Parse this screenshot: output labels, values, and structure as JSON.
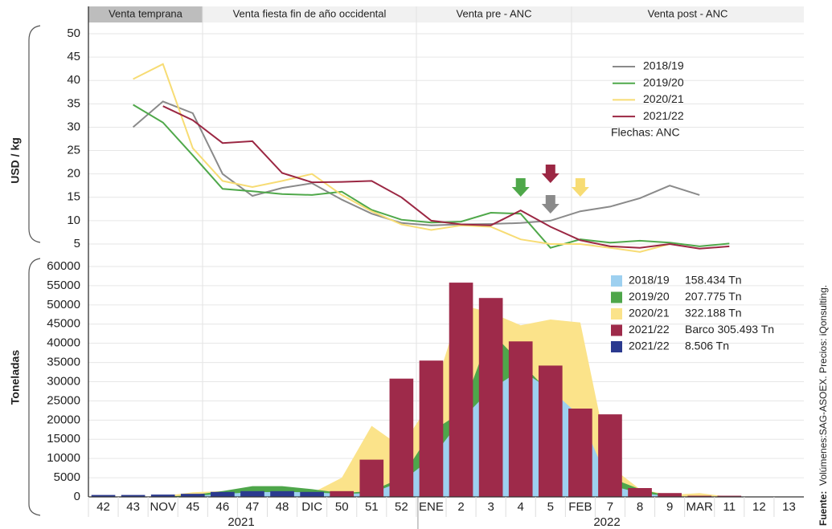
{
  "phases": [
    "Venta temprana",
    "Venta fiesta fin de año occidental",
    "Venta pre - ANC",
    "Venta post - ANC"
  ],
  "years": [
    "2021",
    "2022"
  ],
  "source_label": "Fuente:",
  "source": "Volúmenes:SAG-ASOEX. Precios: iQonsulting.",
  "chart_data": [
    {
      "type": "line",
      "ylabel": "USD / kg",
      "ylim": [
        5,
        50
      ],
      "yticks": [
        5,
        10,
        15,
        20,
        25,
        30,
        35,
        40,
        45,
        50
      ],
      "grid": true,
      "note": "Flechas: ANC",
      "series": [
        {
          "name": "2018/19",
          "color": "#8a8a8a",
          "values": [
            null,
            30,
            35.5,
            33,
            20,
            15.3,
            17,
            18,
            14.5,
            11.5,
            9.5,
            9,
            9.2,
            9.3,
            9.5,
            10,
            12,
            13,
            14.8,
            17.5,
            15.5,
            null,
            null,
            null
          ]
        },
        {
          "name": "2019/20",
          "color": "#4fa84a",
          "values": [
            null,
            34.8,
            31,
            24,
            16.8,
            16.3,
            15.7,
            15.5,
            16.2,
            12.3,
            10.2,
            9.6,
            9.8,
            11.7,
            11.5,
            4.2,
            6,
            5.3,
            5.7,
            5.3,
            4.5,
            5.1,
            null,
            null
          ]
        },
        {
          "name": "2020/21",
          "color": "#f7dc74",
          "values": [
            null,
            40.3,
            43.5,
            25.5,
            18.5,
            17.2,
            18.5,
            20,
            15.5,
            12,
            9.2,
            8,
            9,
            8.7,
            6,
            5,
            5,
            4.2,
            3.3,
            5,
            null,
            null,
            null,
            null
          ]
        },
        {
          "name": "2021/22",
          "color": "#9b2743",
          "values": [
            null,
            null,
            34.5,
            31.5,
            26.6,
            27,
            20.2,
            18.2,
            18.3,
            18.5,
            15,
            10,
            9.2,
            9,
            12.2,
            8.7,
            5.8,
            4.5,
            4.2,
            5,
            4,
            4.5,
            null,
            null
          ]
        }
      ]
    },
    {
      "type": "bar",
      "ylabel": "Toneladas",
      "ylim": [
        0,
        60000
      ],
      "yticks": [
        0,
        5000,
        10000,
        15000,
        20000,
        25000,
        30000,
        35000,
        40000,
        45000,
        50000,
        55000,
        60000
      ],
      "grid": true,
      "categories": [
        "42",
        "43",
        "NOV",
        "45",
        "46",
        "47",
        "48",
        "DIC",
        "50",
        "51",
        "52",
        "ENE",
        "2",
        "3",
        "4",
        "5",
        "FEB",
        "7",
        "8",
        "9",
        "MAR",
        "11",
        "12",
        "13"
      ],
      "series": [
        {
          "name": "2020/21",
          "total_label": "322.188 Tn",
          "kind": "area",
          "color": "#fbe38a",
          "values": [
            0,
            0,
            200,
            1200,
            1500,
            1500,
            1200,
            1000,
            5000,
            18500,
            13000,
            25000,
            50000,
            48000,
            44700,
            46200,
            45400,
            8000,
            2000,
            500,
            1000,
            0,
            0,
            0
          ]
        },
        {
          "name": "2019/20",
          "total_label": "207.775 Tn",
          "kind": "area",
          "color": "#4ea64a",
          "values": [
            0,
            0,
            0,
            500,
            1500,
            2800,
            2800,
            2000,
            1000,
            1500,
            5000,
            17000,
            22000,
            43000,
            35000,
            27000,
            18000,
            5000,
            2000,
            200,
            0,
            0,
            0,
            0
          ]
        },
        {
          "name": "2018/19",
          "total_label": "158.434 Tn",
          "kind": "area",
          "color": "#9dd0f0",
          "values": [
            0,
            0,
            0,
            200,
            800,
            1200,
            1300,
            1200,
            800,
            1000,
            4000,
            10000,
            20000,
            28000,
            33000,
            28000,
            21000,
            3000,
            1000,
            200,
            0,
            0,
            0,
            0
          ]
        },
        {
          "name": "2021/22",
          "total_label": "8.506 Tn",
          "kind": "bar",
          "color": "#2b3a8f",
          "values": [
            500,
            500,
            600,
            800,
            1300,
            1500,
            1500,
            1300,
            500,
            null,
            null,
            null,
            null,
            null,
            null,
            null,
            null,
            null,
            null,
            null,
            null,
            null,
            null,
            null
          ]
        },
        {
          "name": "2021/22",
          "total_label": "Barco 305.493 Tn",
          "kind": "bar",
          "color": "#9e2a4a",
          "values": [
            null,
            null,
            null,
            null,
            null,
            null,
            null,
            null,
            1500,
            9700,
            30800,
            35500,
            55800,
            51800,
            40500,
            34200,
            23000,
            21500,
            2300,
            1000,
            300,
            300,
            null,
            null
          ]
        }
      ]
    }
  ]
}
